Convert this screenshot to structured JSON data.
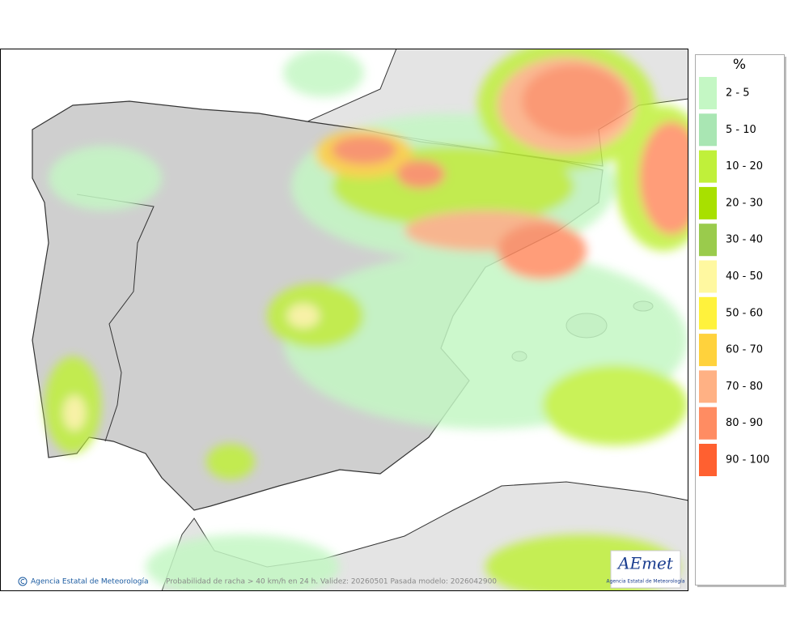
{
  "map": {
    "legend": {
      "title": "%",
      "items": [
        {
          "label": "2 - 5",
          "color": "#c4f7c4"
        },
        {
          "label": "5 - 10",
          "color": "#a9e6b3"
        },
        {
          "label": "10 - 20",
          "color": "#c0f03a"
        },
        {
          "label": "20 - 30",
          "color": "#a8e000"
        },
        {
          "label": "30 - 40",
          "color": "#9acb4c"
        },
        {
          "label": "40 - 50",
          "color": "#fff8a0"
        },
        {
          "label": "50 - 60",
          "color": "#fff23c"
        },
        {
          "label": "60 - 70",
          "color": "#ffd23c"
        },
        {
          "label": "70 - 80",
          "color": "#ffb184"
        },
        {
          "label": "80 - 90",
          "color": "#ff8c62"
        },
        {
          "label": "90 - 100",
          "color": "#ff6030"
        }
      ]
    },
    "footer": {
      "agency": "Agencia Estatal de Meteorología",
      "caption": "Probabilidad de racha > 40 km/h en 24 h. Validez: 20260501 Pasada modelo: 2026042900"
    },
    "logo": {
      "mark": "AEmet",
      "subtitle": "Agencia Estatal de Meteorología"
    }
  }
}
